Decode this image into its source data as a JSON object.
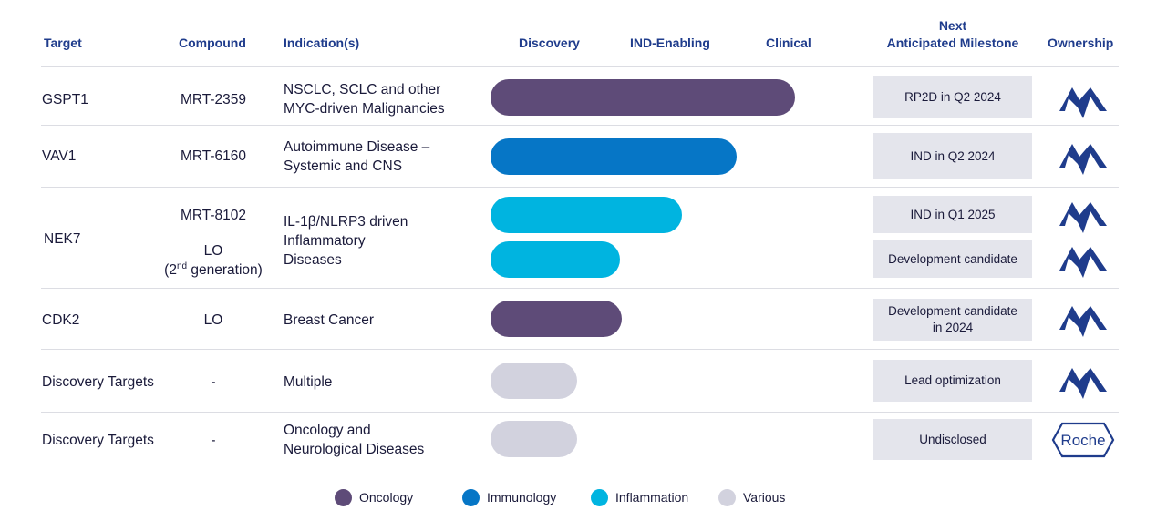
{
  "headers": {
    "target": "Target",
    "compound": "Compound",
    "indication": "Indication(s)",
    "discovery": "Discovery",
    "ind_enabling": "IND-Enabling",
    "clinical": "Clinical",
    "milestone_line1": "Next",
    "milestone_line2": "Anticipated Milestone",
    "ownership": "Ownership"
  },
  "colors": {
    "oncology": "#5e4b78",
    "immunology": "#0676c6",
    "inflammation": "#00b4e0",
    "various": "#d2d2de",
    "brand": "#1f3c8c"
  },
  "rows": [
    {
      "target": "GSPT1",
      "compound": "MRT-2359",
      "indication": "NSCLC, SCLC and other\nMYC-driven Malignancies",
      "area": "oncology",
      "progress": 0.955,
      "milestone": "RP2D in Q2 2024",
      "ownership": "monte-rosa-logo"
    },
    {
      "target": "VAV1",
      "compound": "MRT-6160",
      "indication": "Autoimmune Disease –\nSystemic and CNS",
      "area": "immunology",
      "progress": 0.77,
      "milestone": "IND in Q2 2024",
      "ownership": "monte-rosa-logo"
    },
    {
      "target": "NEK7",
      "compound": "MRT-8102",
      "indication": "IL-1β/NLRP3 driven\nInflammatory\nDiseases",
      "area": "inflammation",
      "progress": 0.6,
      "milestone": "IND in Q1 2025",
      "ownership": "monte-rosa-logo"
    },
    {
      "compound_line1": "LO",
      "compound_line2_pre": "(2",
      "compound_line2_sup": "nd",
      "compound_line2_post": " generation)",
      "area": "inflammation",
      "progress": 0.405,
      "milestone": "Development candidate",
      "ownership": "monte-rosa-logo"
    },
    {
      "target": "CDK2",
      "compound": "LO",
      "indication": "Breast  Cancer",
      "area": "oncology",
      "progress": 0.41,
      "milestone": "Development candidate\nin 2024",
      "ownership": "monte-rosa-logo"
    },
    {
      "target": "Discovery Targets",
      "compound": "-",
      "indication": "Multiple",
      "area": "various",
      "progress": 0.27,
      "milestone": "Lead optimization",
      "ownership": "monte-rosa-logo"
    },
    {
      "target": "Discovery Targets",
      "compound": "-",
      "indication": "Oncology and\nNeurological Diseases",
      "area": "various",
      "progress": 0.27,
      "milestone": "Undisclosed",
      "ownership": "Roche"
    }
  ],
  "legend": [
    {
      "label": "Oncology",
      "color": "#5e4b78"
    },
    {
      "label": "Immunology",
      "color": "#0676c6"
    },
    {
      "label": "Inflammation",
      "color": "#00b4e0"
    },
    {
      "label": "Various",
      "color": "#d2d2de"
    }
  ]
}
